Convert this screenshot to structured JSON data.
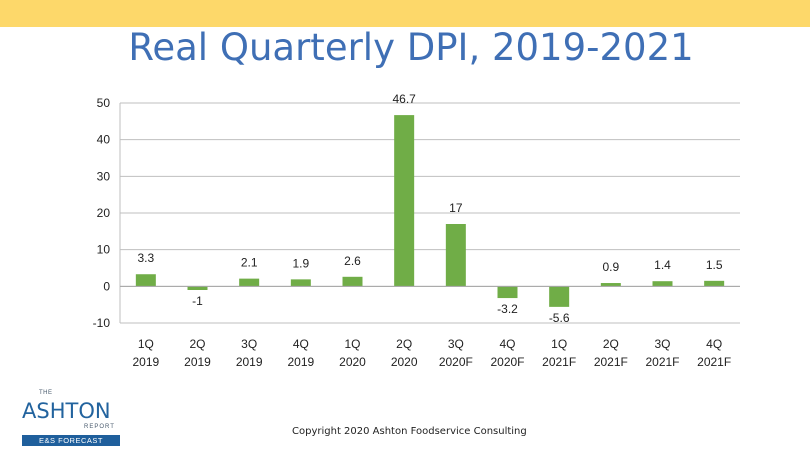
{
  "header": {
    "title": "Real Quarterly DPI, 2019-2021",
    "accent_color": "#fdd86a",
    "title_color": "#3f6fb5"
  },
  "chart_data": {
    "type": "bar",
    "title": "Real Quarterly DPI, 2019-2021",
    "xlabel": "",
    "ylabel": "",
    "ylim": [
      -10,
      50
    ],
    "y_ticks": [
      50,
      40,
      30,
      20,
      10,
      0,
      -10
    ],
    "grid": true,
    "legend": "none",
    "bar_color": "#70ad47",
    "categories": [
      [
        "1Q",
        "2019"
      ],
      [
        "2Q",
        "2019"
      ],
      [
        "3Q",
        "2019"
      ],
      [
        "4Q",
        "2019"
      ],
      [
        "1Q",
        "2020"
      ],
      [
        "2Q",
        "2020"
      ],
      [
        "3Q",
        "2020F"
      ],
      [
        "4Q",
        "2020F"
      ],
      [
        "1Q",
        "2021F"
      ],
      [
        "2Q",
        "2021F"
      ],
      [
        "3Q",
        "2021F"
      ],
      [
        "4Q",
        "2021F"
      ]
    ],
    "values": [
      3.3,
      -1,
      2.1,
      1.9,
      2.6,
      46.7,
      17,
      -3.2,
      -5.6,
      0.9,
      1.4,
      1.5
    ],
    "data_labels": [
      "3.3",
      "-1",
      "2.1",
      "1.9",
      "2.6",
      "46.7",
      "17",
      "-3.2",
      "-5.6",
      "0.9",
      "1.4",
      "1.5"
    ]
  },
  "footer": {
    "copyright": "Copyright 2020 Ashton Foodservice Consulting",
    "logo": {
      "the": "THE",
      "name": "ASHTON",
      "report": "REPORT",
      "band": "E&S FORECAST"
    }
  }
}
